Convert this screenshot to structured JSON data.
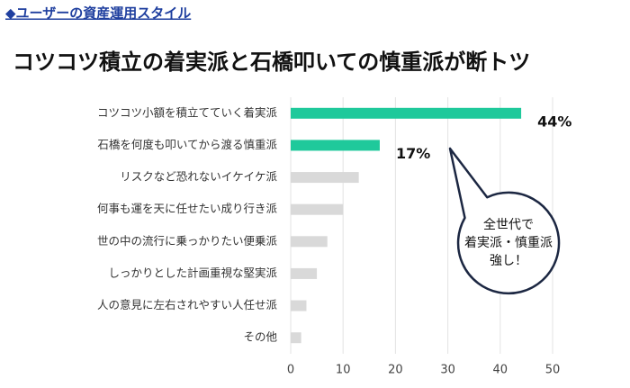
{
  "chart_data": {
    "type": "bar",
    "orientation": "horizontal",
    "header": "◆ユーザーの資産運用スタイル",
    "title": "コツコツ積立の着実派と石橋叩いての慎重派が断トツ",
    "categories": [
      "コツコツ小額を積立てていく着実派",
      "石橋を何度も叩いてから渡る慎重派",
      "リスクなど恐れないイケイケ派",
      "何事も運を天に任せたい成り行き派",
      "世の中の流行に乗っかりたい便乗派",
      "しっかりとした計画重視な堅実派",
      "人の意見に左右されやすい人任せ派",
      "その他"
    ],
    "values": [
      44,
      17,
      13,
      10,
      7,
      5,
      3,
      2
    ],
    "value_labels": [
      "44%",
      "17%",
      null,
      null,
      null,
      null,
      null,
      null
    ],
    "colors": [
      "#1fc99b",
      "#1fc99b",
      "#d9d9d9",
      "#d9d9d9",
      "#d9d9d9",
      "#d9d9d9",
      "#d9d9d9",
      "#d9d9d9"
    ],
    "xlim": [
      0,
      50
    ],
    "xticks": [
      0,
      10,
      20,
      30,
      40,
      50
    ],
    "grid": true,
    "annotation": [
      "全世代で",
      "着実派・慎重派",
      "強し！"
    ]
  }
}
